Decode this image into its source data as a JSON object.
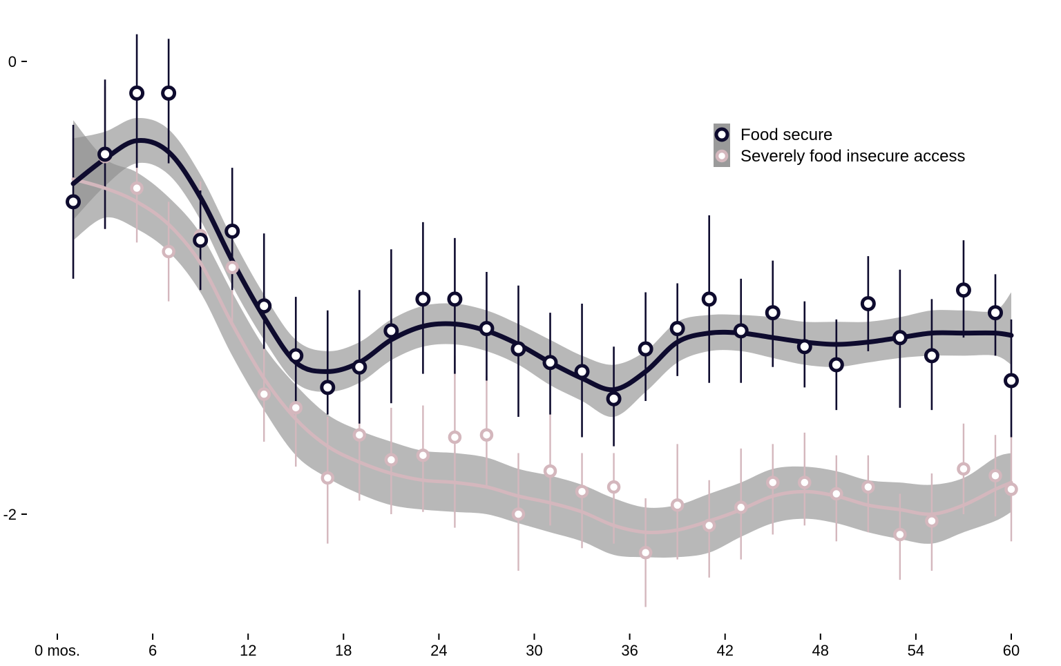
{
  "chart_data": {
    "type": "line",
    "title": "",
    "xlabel": "",
    "ylabel": "",
    "xlim": [
      0,
      60
    ],
    "ylim": [
      -2.5,
      0.2
    ],
    "x_ticks": [
      0,
      6,
      12,
      18,
      24,
      30,
      36,
      42,
      48,
      54,
      60
    ],
    "x_tick_labels": [
      "0 mos.",
      "6",
      "12",
      "18",
      "24",
      "30",
      "36",
      "42",
      "48",
      "54",
      "60"
    ],
    "y_ticks": [
      0,
      -2
    ],
    "y_tick_labels": [
      "0",
      "-2"
    ],
    "grid": false,
    "legend_position": "top-right",
    "series": [
      {
        "name": "Food secure",
        "color": "#0e0b2e",
        "x": [
          1,
          3,
          5,
          7,
          9,
          11,
          13,
          15,
          17,
          19,
          21,
          23,
          25,
          27,
          29,
          31,
          33,
          35,
          37,
          39,
          41,
          43,
          45,
          47,
          49,
          51,
          53,
          55,
          57,
          59,
          60
        ],
        "y": [
          -0.62,
          -0.41,
          -0.14,
          -0.14,
          -0.79,
          -0.75,
          -1.08,
          -1.3,
          -1.44,
          -1.35,
          -1.19,
          -1.05,
          -1.05,
          -1.18,
          -1.27,
          -1.33,
          -1.37,
          -1.49,
          -1.27,
          -1.18,
          -1.05,
          -1.19,
          -1.11,
          -1.26,
          -1.34,
          -1.07,
          -1.22,
          -1.3,
          -1.01,
          -1.11,
          -1.41
        ],
        "ci_low": [
          -0.96,
          -0.74,
          -0.47,
          -0.45,
          -1.01,
          -1.01,
          -1.27,
          -1.53,
          -1.56,
          -1.6,
          -1.51,
          -1.38,
          -1.38,
          -1.41,
          -1.57,
          -1.56,
          -1.66,
          -1.7,
          -1.5,
          -1.39,
          -1.42,
          -1.42,
          -1.35,
          -1.44,
          -1.54,
          -1.28,
          -1.53,
          -1.54,
          -1.22,
          -1.3,
          -1.66
        ],
        "ci_high": [
          -0.28,
          -0.08,
          0.12,
          0.1,
          -0.57,
          -0.47,
          -0.76,
          -1.04,
          -1.1,
          -1.01,
          -0.83,
          -0.71,
          -0.78,
          -0.93,
          -0.99,
          -1.11,
          -1.07,
          -1.26,
          -1.02,
          -0.98,
          -0.68,
          -0.96,
          -0.88,
          -1.06,
          -1.14,
          -0.86,
          -0.92,
          -1.05,
          -0.79,
          -0.94,
          -1.14
        ],
        "smooth_x": [
          1,
          3,
          5,
          7,
          9,
          11,
          13,
          15,
          17,
          19,
          21,
          23,
          25,
          27,
          29,
          31,
          33,
          35,
          37,
          39,
          41,
          43,
          45,
          47,
          49,
          51,
          53,
          55,
          57,
          59,
          60
        ],
        "smooth_y": [
          -0.54,
          -0.43,
          -0.35,
          -0.4,
          -0.6,
          -0.88,
          -1.13,
          -1.33,
          -1.37,
          -1.33,
          -1.23,
          -1.17,
          -1.16,
          -1.19,
          -1.25,
          -1.33,
          -1.4,
          -1.45,
          -1.37,
          -1.24,
          -1.2,
          -1.2,
          -1.22,
          -1.24,
          -1.25,
          -1.24,
          -1.22,
          -1.2,
          -1.2,
          -1.2,
          -1.21
        ],
        "band_low": [
          -0.7,
          -0.55,
          -0.45,
          -0.5,
          -0.7,
          -0.99,
          -1.23,
          -1.42,
          -1.46,
          -1.42,
          -1.32,
          -1.26,
          -1.25,
          -1.28,
          -1.34,
          -1.43,
          -1.5,
          -1.57,
          -1.46,
          -1.33,
          -1.28,
          -1.28,
          -1.31,
          -1.34,
          -1.35,
          -1.33,
          -1.31,
          -1.3,
          -1.3,
          -1.3,
          -1.34
        ],
        "band_high": [
          -0.34,
          -0.31,
          -0.25,
          -0.3,
          -0.5,
          -0.78,
          -1.03,
          -1.23,
          -1.28,
          -1.24,
          -1.14,
          -1.08,
          -1.07,
          -1.1,
          -1.16,
          -1.23,
          -1.3,
          -1.34,
          -1.28,
          -1.15,
          -1.12,
          -1.12,
          -1.13,
          -1.15,
          -1.15,
          -1.15,
          -1.13,
          -1.1,
          -1.1,
          -1.1,
          -1.02
        ]
      },
      {
        "name": "Severely food insecure access",
        "color": "#d4b7bd",
        "x": [
          1,
          3,
          5,
          7,
          9,
          11,
          13,
          15,
          17,
          19,
          21,
          23,
          25,
          27,
          29,
          31,
          33,
          35,
          37,
          39,
          41,
          43,
          45,
          47,
          49,
          51,
          53,
          55,
          57,
          59,
          60
        ],
        "y": [
          -0.62,
          -0.42,
          -0.56,
          -0.84,
          -0.77,
          -0.91,
          -1.47,
          -1.53,
          -1.84,
          -1.65,
          -1.76,
          -1.74,
          -1.66,
          -1.65,
          -2.0,
          -1.81,
          -1.9,
          -1.88,
          -2.17,
          -1.96,
          -2.05,
          -1.97,
          -1.86,
          -1.86,
          -1.91,
          -1.88,
          -2.09,
          -2.03,
          -1.8,
          -1.83,
          -1.89
        ],
        "ci_low": [
          -0.92,
          -0.74,
          -0.8,
          -1.06,
          -1.01,
          -1.15,
          -1.68,
          -1.79,
          -2.13,
          -1.94,
          -2.0,
          -1.99,
          -2.06,
          -1.88,
          -2.25,
          -2.05,
          -2.15,
          -2.13,
          -2.41,
          -2.2,
          -2.28,
          -2.2,
          -2.09,
          -2.05,
          -2.12,
          -2.08,
          -2.29,
          -2.25,
          -2.0,
          -2.01,
          -2.12
        ],
        "ci_high": [
          -0.34,
          -0.11,
          -0.34,
          -0.62,
          -0.53,
          -0.64,
          -1.27,
          -1.28,
          -1.57,
          -1.37,
          -1.53,
          -1.52,
          -1.3,
          -1.39,
          -1.73,
          -1.56,
          -1.73,
          -1.73,
          -1.93,
          -1.69,
          -1.85,
          -1.71,
          -1.69,
          -1.64,
          -1.74,
          -1.74,
          -1.91,
          -1.82,
          -1.6,
          -1.65,
          -1.65
        ],
        "smooth_x": [
          1,
          3,
          5,
          7,
          9,
          11,
          13,
          15,
          17,
          19,
          21,
          23,
          25,
          27,
          29,
          31,
          33,
          35,
          37,
          39,
          41,
          43,
          45,
          47,
          49,
          51,
          53,
          55,
          57,
          59,
          60
        ],
        "smooth_y": [
          -0.52,
          -0.56,
          -0.62,
          -0.72,
          -0.89,
          -1.16,
          -1.4,
          -1.58,
          -1.7,
          -1.77,
          -1.82,
          -1.85,
          -1.86,
          -1.88,
          -1.92,
          -1.95,
          -1.99,
          -2.05,
          -2.08,
          -2.07,
          -2.03,
          -1.98,
          -1.92,
          -1.9,
          -1.92,
          -1.96,
          -1.98,
          -2.0,
          -1.96,
          -1.89,
          -1.86
        ],
        "band_low": [
          -0.79,
          -0.69,
          -0.74,
          -0.84,
          -1.02,
          -1.3,
          -1.54,
          -1.74,
          -1.84,
          -1.91,
          -1.96,
          -1.98,
          -1.99,
          -2.0,
          -2.04,
          -2.08,
          -2.12,
          -2.18,
          -2.19,
          -2.19,
          -2.17,
          -2.1,
          -2.04,
          -2.02,
          -2.04,
          -2.08,
          -2.11,
          -2.13,
          -2.08,
          -2.03,
          -1.99
        ],
        "band_high": [
          -0.26,
          -0.43,
          -0.49,
          -0.6,
          -0.76,
          -1.02,
          -1.26,
          -1.43,
          -1.56,
          -1.63,
          -1.68,
          -1.72,
          -1.73,
          -1.75,
          -1.8,
          -1.83,
          -1.87,
          -1.93,
          -1.97,
          -1.96,
          -1.91,
          -1.86,
          -1.8,
          -1.79,
          -1.81,
          -1.85,
          -1.86,
          -1.87,
          -1.84,
          -1.75,
          -1.73
        ]
      }
    ]
  }
}
